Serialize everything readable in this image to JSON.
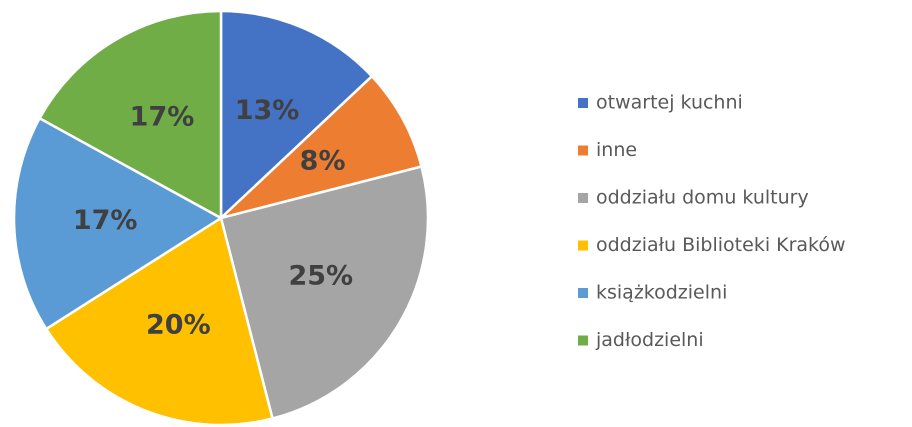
{
  "chart_data": {
    "type": "pie",
    "categories": [
      "otwartej kuchni",
      "inne",
      "oddziału domu kultury",
      "oddziału Biblioteki Kraków",
      "książkodzielni",
      "jadłodzielni"
    ],
    "values": [
      13,
      8,
      25,
      20,
      17,
      17
    ],
    "value_labels": [
      "13%",
      "8%",
      "25%",
      "20%",
      "17%",
      "17%"
    ],
    "colors": [
      "#4472c4",
      "#ed7d31",
      "#a5a5a5",
      "#ffc000",
      "#5b9bd5",
      "#70ad47"
    ],
    "legend": "right"
  }
}
